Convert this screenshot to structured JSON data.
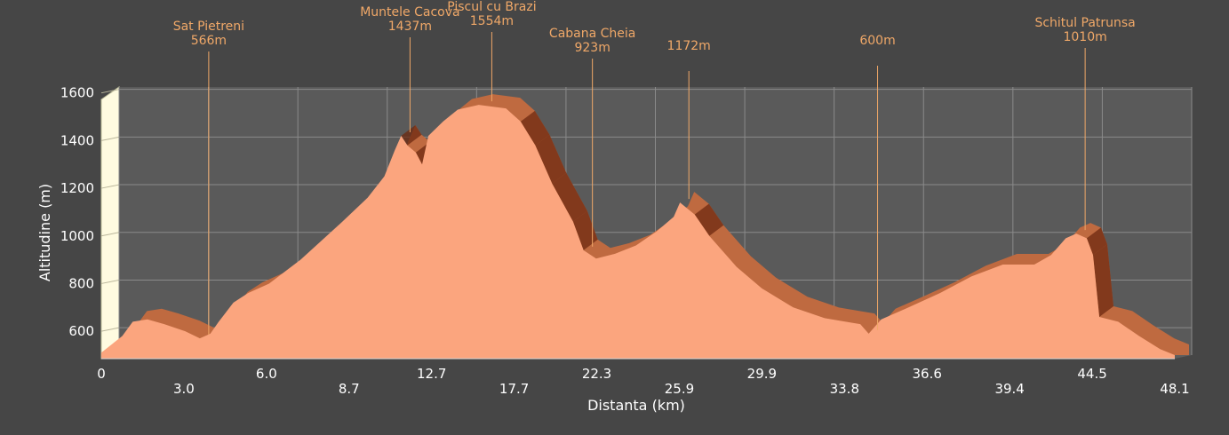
{
  "chart_data": {
    "type": "area",
    "xlabel": "Distanta (km)",
    "ylabel": "Altitudine (m)",
    "xlim": [
      0,
      48.1
    ],
    "ylim": [
      485,
      1610
    ],
    "x_ticks": [
      "0",
      "3.0",
      "6.0",
      "8.7",
      "12.7",
      "17.7",
      "22.3",
      "25.9",
      "29.9",
      "33.8",
      "36.6",
      "39.4",
      "44.5",
      "48.1"
    ],
    "y_ticks": [
      600,
      800,
      1000,
      1200,
      1400,
      1600
    ],
    "profile": [
      {
        "x": 0.0,
        "y": 510
      },
      {
        "x": 1.0,
        "y": 580
      },
      {
        "x": 1.5,
        "y": 640
      },
      {
        "x": 2.2,
        "y": 650
      },
      {
        "x": 3.0,
        "y": 630
      },
      {
        "x": 4.0,
        "y": 600
      },
      {
        "x": 4.7,
        "y": 570
      },
      {
        "x": 5.2,
        "y": 590
      },
      {
        "x": 5.6,
        "y": 640
      },
      {
        "x": 6.3,
        "y": 720
      },
      {
        "x": 7.0,
        "y": 760
      },
      {
        "x": 8.0,
        "y": 800
      },
      {
        "x": 9.5,
        "y": 900
      },
      {
        "x": 10.5,
        "y": 980
      },
      {
        "x": 11.5,
        "y": 1060
      },
      {
        "x": 12.7,
        "y": 1160
      },
      {
        "x": 13.5,
        "y": 1250
      },
      {
        "x": 14.0,
        "y": 1360
      },
      {
        "x": 14.3,
        "y": 1420
      },
      {
        "x": 14.6,
        "y": 1380
      },
      {
        "x": 15.0,
        "y": 1350
      },
      {
        "x": 15.3,
        "y": 1300
      },
      {
        "x": 15.6,
        "y": 1420
      },
      {
        "x": 16.3,
        "y": 1480
      },
      {
        "x": 17.0,
        "y": 1530
      },
      {
        "x": 18.0,
        "y": 1550
      },
      {
        "x": 19.3,
        "y": 1535
      },
      {
        "x": 20.0,
        "y": 1480
      },
      {
        "x": 20.7,
        "y": 1380
      },
      {
        "x": 21.5,
        "y": 1220
      },
      {
        "x": 22.5,
        "y": 1060
      },
      {
        "x": 23.0,
        "y": 940
      },
      {
        "x": 23.6,
        "y": 905
      },
      {
        "x": 24.5,
        "y": 925
      },
      {
        "x": 25.5,
        "y": 960
      },
      {
        "x": 26.5,
        "y": 1020
      },
      {
        "x": 27.3,
        "y": 1080
      },
      {
        "x": 27.6,
        "y": 1140
      },
      {
        "x": 28.3,
        "y": 1090
      },
      {
        "x": 29.0,
        "y": 1000
      },
      {
        "x": 30.3,
        "y": 870
      },
      {
        "x": 31.5,
        "y": 780
      },
      {
        "x": 33.0,
        "y": 700
      },
      {
        "x": 34.5,
        "y": 655
      },
      {
        "x": 35.5,
        "y": 640
      },
      {
        "x": 36.2,
        "y": 630
      },
      {
        "x": 36.6,
        "y": 590
      },
      {
        "x": 37.2,
        "y": 650
      },
      {
        "x": 38.5,
        "y": 700
      },
      {
        "x": 40.0,
        "y": 760
      },
      {
        "x": 41.5,
        "y": 830
      },
      {
        "x": 43.0,
        "y": 880
      },
      {
        "x": 44.5,
        "y": 880
      },
      {
        "x": 45.3,
        "y": 920
      },
      {
        "x": 46.0,
        "y": 990
      },
      {
        "x": 46.5,
        "y": 1010
      },
      {
        "x": 47.0,
        "y": 990
      },
      {
        "x": 47.3,
        "y": 920
      },
      {
        "x": 47.6,
        "y": 660
      },
      {
        "x": 48.5,
        "y": 640
      },
      {
        "x": 49.5,
        "y": 580
      },
      {
        "x": 50.5,
        "y": 525
      },
      {
        "x": 51.2,
        "y": 500
      }
    ],
    "annotations": [
      {
        "name": "Sat Pietreni",
        "elevation": "566m",
        "x": 4.7
      },
      {
        "name": "Muntele Cacova",
        "elevation": "1437m",
        "x": 14.3
      },
      {
        "name": "Piscul cu Brazi",
        "elevation": "1554m",
        "x": 18.2
      },
      {
        "name": "Cabana Cheia",
        "elevation": "923m",
        "x": 23.0
      },
      {
        "name": "",
        "elevation": "1172m",
        "x": 27.6
      },
      {
        "name": "",
        "elevation": "600m",
        "x": 36.6
      },
      {
        "name": "Schitul Patrunsa",
        "elevation": "1010m",
        "x": 46.5
      }
    ],
    "grid": true
  },
  "colors": {
    "background": "#464646",
    "plot_background": "#5a5a5a",
    "grid": "#8a8a8a",
    "profile_fill": "#fba57e",
    "profile_top": "#bf6a40",
    "profile_dark": "#6e2a10",
    "annotation": "#f0a868",
    "wall": "#fffbe0"
  }
}
